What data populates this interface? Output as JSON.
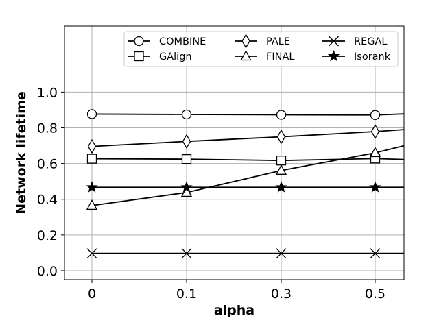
{
  "chart_data": {
    "type": "line",
    "title": "",
    "xlabel": "alpha",
    "ylabel": "Network lifetime",
    "categories": [
      "0",
      "0.1",
      "0.3",
      "0.5"
    ],
    "x_extends_past_last_category": true,
    "yticks": [
      "0.0",
      "0.2",
      "0.4",
      "0.6",
      "0.8",
      "1.0"
    ],
    "ylim": [
      -0.05,
      1.37
    ],
    "grid": true,
    "legend": {
      "position": "top",
      "columns": 3
    },
    "series": [
      {
        "name": "COMBINE",
        "marker": "circle",
        "values": [
          0.877,
          0.875,
          0.873,
          0.872
        ],
        "end_value": 0.878
      },
      {
        "name": "GAlign",
        "marker": "square",
        "values": [
          0.627,
          0.625,
          0.617,
          0.628
        ],
        "end_value": 0.623
      },
      {
        "name": "PALE",
        "marker": "diamond",
        "values": [
          0.696,
          0.724,
          0.75,
          0.779
        ],
        "end_value": 0.79
      },
      {
        "name": "FINAL",
        "marker": "triangle",
        "values": [
          0.365,
          0.438,
          0.561,
          0.66
        ],
        "end_value": 0.7
      },
      {
        "name": "REGAL",
        "marker": "x",
        "values": [
          0.097,
          0.097,
          0.097,
          0.097
        ],
        "end_value": 0.097
      },
      {
        "name": "Isorank",
        "marker": "star",
        "values": [
          0.467,
          0.467,
          0.467,
          0.467
        ],
        "end_value": 0.467
      }
    ]
  }
}
